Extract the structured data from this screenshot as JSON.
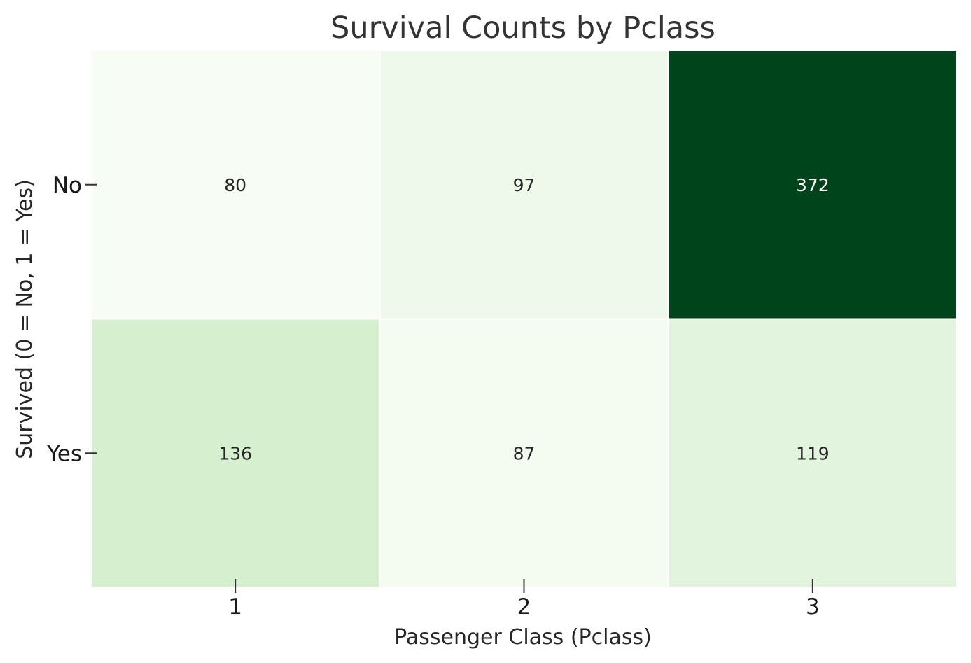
{
  "chart_data": {
    "type": "heatmap",
    "title": "Survival Counts by Pclass",
    "xlabel": "Passenger Class (Pclass)",
    "ylabel": "Survived (0 = No, 1 = Yes)",
    "x_categories": [
      "1",
      "2",
      "3"
    ],
    "y_categories": [
      "No",
      "Yes"
    ],
    "values": [
      [
        80,
        97,
        372
      ],
      [
        136,
        87,
        119
      ]
    ],
    "colormap": "Greens",
    "colorbar": false,
    "annotations": true,
    "cell_border_color": "#ffffff",
    "colors": {
      "low": "#f7fcf5",
      "high": "#00441b",
      "text_dark": "#262626",
      "text_light": "#ffffff"
    }
  }
}
